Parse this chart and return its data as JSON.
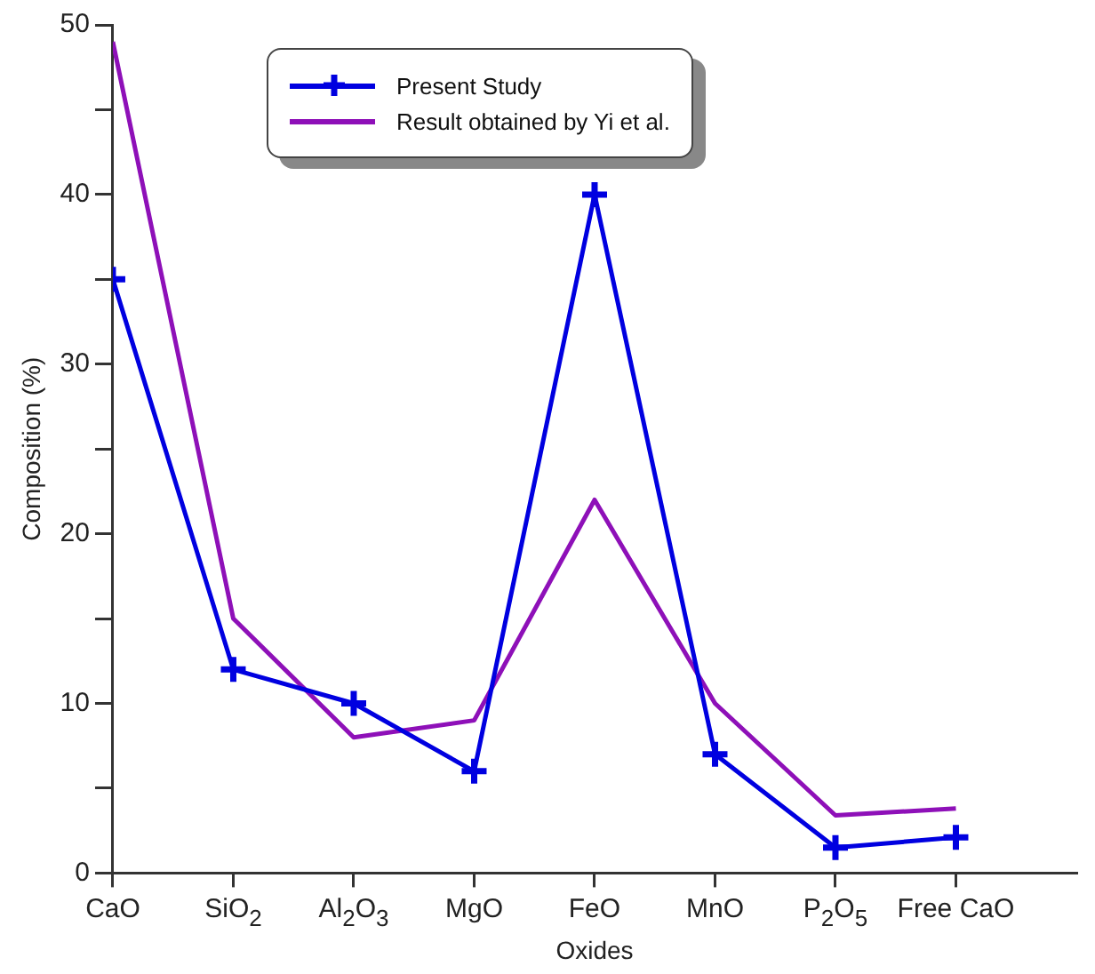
{
  "chart_data": {
    "type": "line",
    "xlabel": "Oxides",
    "ylabel": "Composition (%)",
    "categories": [
      "CaO",
      "SiO$_{2}$",
      "Al$_{2}$O$_{3}$",
      "MgO",
      "FeO",
      "MnO",
      "P$_{2}$O$_{5}$",
      "Free CaO"
    ],
    "series": [
      {
        "name": "Present Study",
        "color": "#0000e0",
        "marker": "cross",
        "values": [
          35,
          12,
          10,
          6,
          40,
          7,
          1.5,
          2.1
        ]
      },
      {
        "name": "Result obtained by Yi et al.",
        "color": "#8e10b8",
        "marker": "none",
        "values": [
          49,
          15,
          8,
          9,
          22,
          10,
          3.4,
          3.8
        ]
      }
    ],
    "ylim": [
      0,
      50
    ],
    "yticks": [
      0,
      {
        "value": 5,
        "label": null
      },
      10,
      {
        "value": 15,
        "label": null
      },
      20,
      {
        "value": 25,
        "label": null
      },
      30,
      {
        "value": 35,
        "label": null
      },
      40,
      {
        "value": 45,
        "label": null
      },
      50
    ],
    "grid": false,
    "legend": "top",
    "line_style": "solid"
  }
}
